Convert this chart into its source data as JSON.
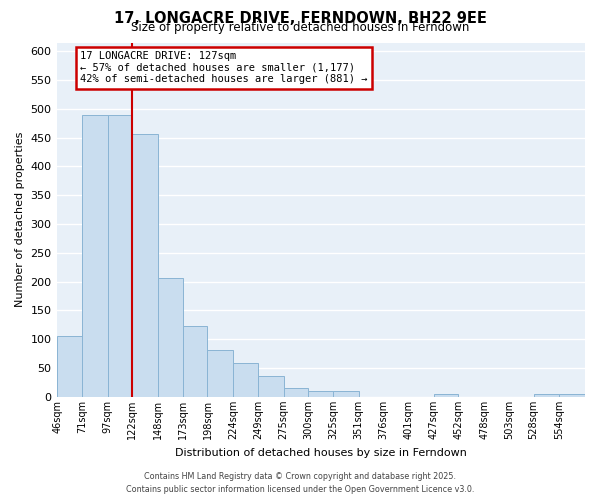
{
  "title": "17, LONGACRE DRIVE, FERNDOWN, BH22 9EE",
  "subtitle": "Size of property relative to detached houses in Ferndown",
  "xlabel": "Distribution of detached houses by size in Ferndown",
  "ylabel": "Number of detached properties",
  "bar_color": "#c9ddef",
  "bar_edge_color": "#8ab4d4",
  "background_color": "#e8f0f8",
  "grid_color": "#ffffff",
  "bin_edges": [
    46,
    71,
    97,
    122,
    148,
    173,
    198,
    224,
    249,
    275,
    300,
    325,
    351,
    376,
    401,
    427,
    452,
    478,
    503,
    528,
    554,
    580
  ],
  "bin_labels": [
    "46sqm",
    "71sqm",
    "97sqm",
    "122sqm",
    "148sqm",
    "173sqm",
    "198sqm",
    "224sqm",
    "249sqm",
    "275sqm",
    "300sqm",
    "325sqm",
    "351sqm",
    "376sqm",
    "401sqm",
    "427sqm",
    "452sqm",
    "478sqm",
    "503sqm",
    "528sqm",
    "554sqm"
  ],
  "values": [
    105,
    490,
    490,
    457,
    207,
    123,
    82,
    58,
    37,
    16,
    11,
    11,
    0,
    0,
    0,
    5,
    0,
    0,
    0,
    5,
    5
  ],
  "vline_x": 122,
  "vline_color": "#cc0000",
  "annotation_title": "17 LONGACRE DRIVE: 127sqm",
  "annotation_line1": "← 57% of detached houses are smaller (1,177)",
  "annotation_line2": "42% of semi-detached houses are larger (881) →",
  "annotation_box_color": "#ffffff",
  "annotation_box_edge": "#cc0000",
  "ylim": [
    0,
    615
  ],
  "yticks": [
    0,
    50,
    100,
    150,
    200,
    250,
    300,
    350,
    400,
    450,
    500,
    550,
    600
  ],
  "footer1": "Contains HM Land Registry data © Crown copyright and database right 2025.",
  "footer2": "Contains public sector information licensed under the Open Government Licence v3.0."
}
